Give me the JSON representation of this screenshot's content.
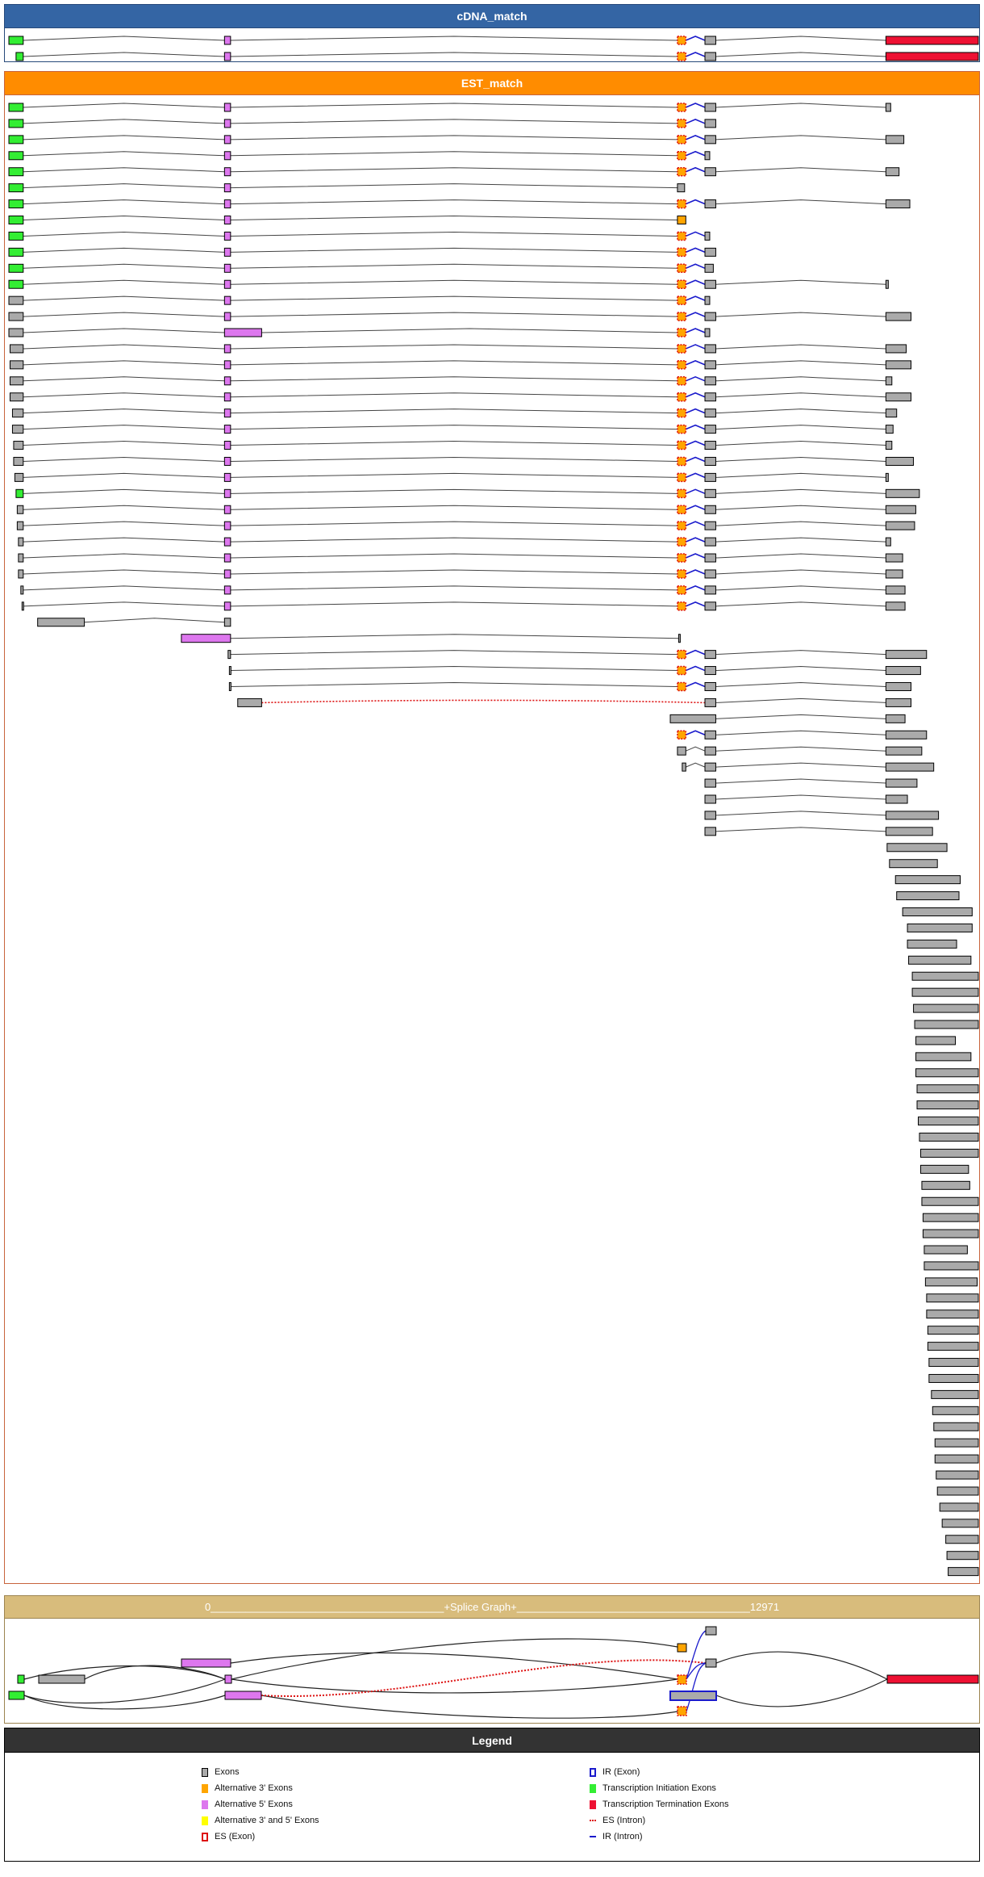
{
  "genome_length": 12971,
  "colors": {
    "cdna_header": "#3465a4",
    "est_header": "#ff8c00",
    "splice_header": "#d8bc7c",
    "legend_header": "#333333",
    "exon": "#aaaaaa",
    "alt3": "#ffa500",
    "alt5": "#dd77ee",
    "alt35": "#ffff00",
    "tss": "#33ee33",
    "term": "#ee1133",
    "es": "#dd1111",
    "ir": "#1a1acc",
    "intron": "#444444"
  },
  "cdna": {
    "title": "cDNA_match",
    "rows": [
      [
        [
          0,
          192,
          "tss"
        ],
        "A",
        "S",
        "B",
        [
          11734,
          12971,
          "term"
        ]
      ],
      [
        [
          96,
          192,
          "tss"
        ],
        "A",
        "S",
        "B",
        [
          11734,
          12971,
          "term"
        ]
      ]
    ]
  },
  "exon_catalog": {
    "T": [
      0,
      192,
      "tss"
    ],
    "A": [
      2885,
      2966,
      "alt5"
    ],
    "S": [
      8945,
      9057,
      "es"
    ],
    "B": [
      9313,
      9458,
      "exon"
    ],
    "b": [
      9313,
      9377,
      "exon"
    ],
    "c": [
      9313,
      9425,
      "exon"
    ]
  },
  "est": {
    "title": "EST_match",
    "rows": [
      [
        "T",
        "A",
        "S",
        "B",
        [
          11734,
          11798,
          "exon"
        ]
      ],
      [
        "T",
        "A",
        "S",
        "B"
      ],
      [
        "T",
        "A",
        "S",
        "B",
        [
          11734,
          11974,
          "exon"
        ]
      ],
      [
        "T",
        "A",
        "S",
        "b"
      ],
      [
        "T",
        "A",
        "S",
        "B",
        [
          11734,
          11910,
          "exon"
        ]
      ],
      [
        "T",
        "A",
        [
          8945,
          9041,
          "exon"
        ]
      ],
      [
        "T",
        "A",
        "S",
        "B",
        [
          11734,
          12054,
          "exon"
        ]
      ],
      [
        "T",
        "A",
        [
          8945,
          9057,
          "alt3"
        ]
      ],
      [
        "T",
        "A",
        "S",
        "b"
      ],
      [
        "T",
        "A",
        "S",
        "B"
      ],
      [
        "T",
        "A",
        "S",
        "c"
      ],
      [
        "T",
        "A",
        "S",
        "B",
        [
          11734,
          11766,
          "exon"
        ]
      ],
      [
        [
          0,
          192,
          "exon"
        ],
        "A",
        "S",
        "b"
      ],
      [
        [
          0,
          192,
          "exon"
        ],
        "A",
        "S",
        "B",
        [
          11734,
          12070,
          "exon"
        ]
      ],
      [
        [
          0,
          192,
          "exon"
        ],
        [
          2885,
          3382,
          "alt5"
        ],
        "S",
        "b"
      ],
      [
        [
          16,
          192,
          "exon"
        ],
        "A",
        "S",
        "B",
        [
          11734,
          12006,
          "exon"
        ]
      ],
      [
        [
          16,
          192,
          "exon"
        ],
        "A",
        "S",
        "B",
        [
          11734,
          12070,
          "exon"
        ]
      ],
      [
        [
          16,
          192,
          "exon"
        ],
        "A",
        "S",
        "B",
        [
          11734,
          11814,
          "exon"
        ]
      ],
      [
        [
          16,
          192,
          "exon"
        ],
        "A",
        "S",
        "B",
        [
          11734,
          12070,
          "exon"
        ]
      ],
      [
        [
          48,
          192,
          "exon"
        ],
        "A",
        "S",
        "B",
        [
          11734,
          11878,
          "exon"
        ]
      ],
      [
        [
          48,
          192,
          "exon"
        ],
        "A",
        "S",
        "B",
        [
          11734,
          11830,
          "exon"
        ]
      ],
      [
        [
          64,
          192,
          "exon"
        ],
        "A",
        "S",
        "B",
        [
          11734,
          11814,
          "exon"
        ]
      ],
      [
        [
          64,
          192,
          "exon"
        ],
        "A",
        "S",
        "B",
        [
          11734,
          12102,
          "exon"
        ]
      ],
      [
        [
          80,
          192,
          "exon"
        ],
        "A",
        "S",
        "B",
        [
          11734,
          11766,
          "exon"
        ]
      ],
      [
        [
          96,
          192,
          "tss"
        ],
        "A",
        "S",
        "B",
        [
          11734,
          12182,
          "exon"
        ]
      ],
      [
        [
          112,
          192,
          "exon"
        ],
        "A",
        "S",
        "B",
        [
          11734,
          12134,
          "exon"
        ]
      ],
      [
        [
          112,
          192,
          "exon"
        ],
        "A",
        "S",
        "B",
        [
          11734,
          12118,
          "exon"
        ]
      ],
      [
        [
          128,
          192,
          "exon"
        ],
        "A",
        "S",
        "B",
        [
          11734,
          11798,
          "exon"
        ]
      ],
      [
        [
          128,
          192,
          "exon"
        ],
        "A",
        "S",
        "B",
        [
          11734,
          11958,
          "exon"
        ]
      ],
      [
        [
          128,
          192,
          "exon"
        ],
        "A",
        "S",
        "B",
        [
          11734,
          11958,
          "exon"
        ]
      ],
      [
        [
          160,
          192,
          "exon"
        ],
        "A",
        "S",
        "B",
        [
          11734,
          11990,
          "exon"
        ]
      ],
      [
        [
          176,
          192,
          "exon"
        ],
        "A",
        "S",
        "B",
        [
          11734,
          11990,
          "exon"
        ]
      ],
      [
        [
          385,
          1010,
          "exon"
        ],
        [
          2885,
          2966,
          "exon"
        ]
      ],
      [
        [
          2308,
          2966,
          "alt5"
        ],
        [
          8961,
          8977,
          "exon"
        ]
      ],
      [
        [
          2933,
          2966,
          "exon"
        ],
        "S",
        "B",
        [
          11734,
          12278,
          "exon"
        ]
      ],
      [
        [
          2950,
          2966,
          "exon"
        ],
        "S",
        "B",
        [
          11734,
          12198,
          "exon"
        ]
      ],
      [
        [
          2950,
          2966,
          "exon"
        ],
        "S",
        "B",
        [
          11734,
          12070,
          "exon"
        ]
      ],
      {
        "e": [
          [
            3062,
            3382,
            "exon"
          ],
          "B",
          [
            11734,
            12070,
            "exon"
          ]
        ],
        "i": [
          "es",
          "n"
        ]
      },
      [
        [
          8849,
          9458,
          "exon"
        ],
        [
          11734,
          11990,
          "exon"
        ]
      ],
      [
        "S",
        "B",
        [
          11734,
          12278,
          "exon"
        ]
      ],
      [
        [
          8945,
          9057,
          "exon"
        ],
        "B",
        [
          11734,
          12214,
          "exon"
        ]
      ],
      [
        [
          9009,
          9057,
          "exon"
        ],
        "B",
        [
          11734,
          12374,
          "exon"
        ]
      ],
      [
        "B",
        [
          11734,
          12150,
          "exon"
        ]
      ],
      [
        "B",
        [
          11734,
          12022,
          "exon"
        ]
      ],
      [
        "B",
        [
          11734,
          12438,
          "exon"
        ]
      ],
      [
        "B",
        [
          11734,
          12358,
          "exon"
        ]
      ],
      [
        [
          11750,
          12551,
          "exon"
        ]
      ],
      [
        [
          11782,
          12423,
          "exon"
        ]
      ],
      [
        [
          11862,
          12728,
          "exon"
        ]
      ],
      [
        [
          11878,
          12712,
          "exon"
        ]
      ],
      [
        [
          11958,
          12888,
          "exon"
        ]
      ],
      [
        [
          12022,
          12888,
          "exon"
        ]
      ],
      [
        [
          12022,
          12680,
          "exon"
        ]
      ],
      [
        [
          12038,
          12872,
          "exon"
        ]
      ],
      [
        [
          12087,
          12971,
          "exon"
        ]
      ],
      [
        [
          12087,
          12971,
          "exon"
        ]
      ],
      [
        [
          12103,
          12971,
          "exon"
        ]
      ],
      [
        [
          12119,
          12971,
          "exon"
        ]
      ],
      [
        [
          12135,
          12664,
          "exon"
        ]
      ],
      [
        [
          12135,
          12872,
          "exon"
        ]
      ],
      [
        [
          12135,
          12971,
          "exon"
        ]
      ],
      [
        [
          12151,
          12971,
          "exon"
        ]
      ],
      [
        [
          12151,
          12971,
          "exon"
        ]
      ],
      [
        [
          12167,
          12971,
          "exon"
        ]
      ],
      [
        [
          12183,
          12971,
          "exon"
        ]
      ],
      [
        [
          12199,
          12971,
          "exon"
        ]
      ],
      [
        [
          12199,
          12840,
          "exon"
        ]
      ],
      [
        [
          12215,
          12856,
          "exon"
        ]
      ],
      [
        [
          12215,
          12971,
          "exon"
        ]
      ],
      [
        [
          12231,
          12971,
          "exon"
        ]
      ],
      [
        [
          12231,
          12971,
          "exon"
        ]
      ],
      [
        [
          12247,
          12824,
          "exon"
        ]
      ],
      [
        [
          12247,
          12971,
          "exon"
        ]
      ],
      [
        [
          12263,
          12955,
          "exon"
        ]
      ],
      [
        [
          12279,
          12971,
          "exon"
        ]
      ],
      [
        [
          12279,
          12971,
          "exon"
        ]
      ],
      [
        [
          12295,
          12971,
          "exon"
        ]
      ],
      [
        [
          12295,
          12971,
          "exon"
        ]
      ],
      [
        [
          12311,
          12971,
          "exon"
        ]
      ],
      [
        [
          12311,
          12971,
          "exon"
        ]
      ],
      [
        [
          12343,
          12971,
          "exon"
        ]
      ],
      [
        [
          12359,
          12971,
          "exon"
        ]
      ],
      [
        [
          12375,
          12971,
          "exon"
        ]
      ],
      [
        [
          12391,
          12971,
          "exon"
        ]
      ],
      [
        [
          12391,
          12971,
          "exon"
        ]
      ],
      [
        [
          12407,
          12971,
          "exon"
        ]
      ],
      [
        [
          12423,
          12971,
          "exon"
        ]
      ],
      [
        [
          12455,
          12971,
          "exon"
        ]
      ],
      [
        [
          12487,
          12971,
          "exon"
        ]
      ],
      [
        [
          12535,
          12971,
          "exon"
        ]
      ],
      [
        [
          12551,
          12971,
          "exon"
        ]
      ],
      [
        [
          12567,
          12971,
          "exon"
        ]
      ]
    ]
  },
  "splice_graph": {
    "title": "0________________________________________+Splice Graph+________________________________________12971"
  },
  "legend": {
    "title": "Legend",
    "items": [
      {
        "label": "Exons",
        "icon": "exon"
      },
      {
        "label": "Alternative 3' Exons",
        "icon": "alt3"
      },
      {
        "label": "Alternative 5' Exons",
        "icon": "alt5"
      },
      {
        "label": "Alternative 3' and 5' Exons",
        "icon": "alt35"
      },
      {
        "label": "ES (Exon)",
        "icon": "es-exon"
      },
      {
        "label": "IR (Exon)",
        "icon": "ir-exon"
      },
      {
        "label": "Transcription Initiation Exons",
        "icon": "tss"
      },
      {
        "label": "Transcription Termination Exons",
        "icon": "term"
      },
      {
        "label": "ES (Intron)",
        "icon": "es-intron"
      },
      {
        "label": "IR (Intron)",
        "icon": "ir-intron"
      }
    ]
  }
}
